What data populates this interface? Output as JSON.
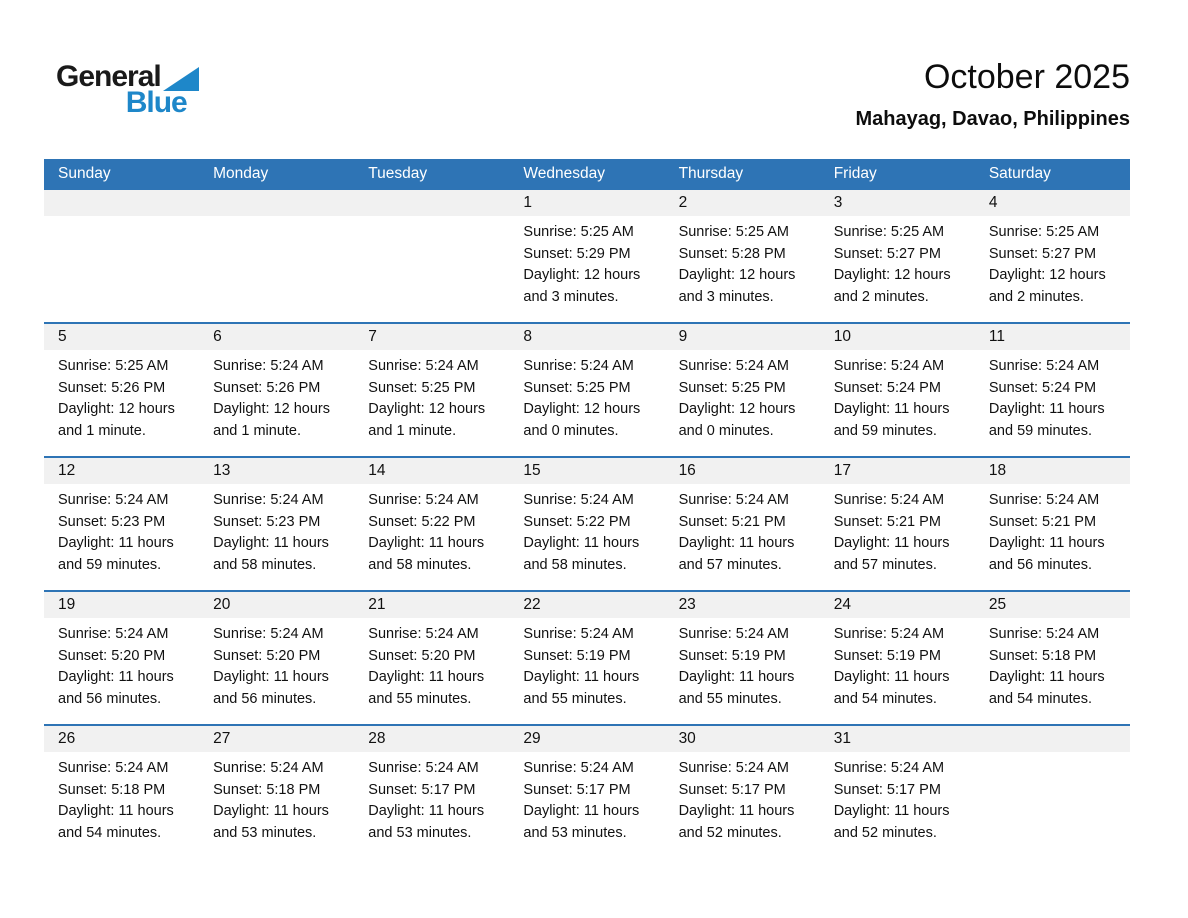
{
  "logo": {
    "part1": "General",
    "part2": "Blue"
  },
  "header": {
    "title": "October 2025",
    "subtitle": "Mahayag, Davao, Philippines"
  },
  "colors": {
    "header_blue": "#2E74B5",
    "day_strip_gray": "#F1F1F1",
    "logo_blue": "#1E87C9"
  },
  "calendar": {
    "weekday_headers": [
      "Sunday",
      "Monday",
      "Tuesday",
      "Wednesday",
      "Thursday",
      "Friday",
      "Saturday"
    ],
    "weeks": [
      [
        {
          "day": ""
        },
        {
          "day": ""
        },
        {
          "day": ""
        },
        {
          "day": "1",
          "sunrise": "Sunrise: 5:25 AM",
          "sunset": "Sunset: 5:29 PM",
          "daylight": [
            "Daylight: 12 hours",
            "and 3 minutes."
          ]
        },
        {
          "day": "2",
          "sunrise": "Sunrise: 5:25 AM",
          "sunset": "Sunset: 5:28 PM",
          "daylight": [
            "Daylight: 12 hours",
            "and 3 minutes."
          ]
        },
        {
          "day": "3",
          "sunrise": "Sunrise: 5:25 AM",
          "sunset": "Sunset: 5:27 PM",
          "daylight": [
            "Daylight: 12 hours",
            "and 2 minutes."
          ]
        },
        {
          "day": "4",
          "sunrise": "Sunrise: 5:25 AM",
          "sunset": "Sunset: 5:27 PM",
          "daylight": [
            "Daylight: 12 hours",
            "and 2 minutes."
          ]
        }
      ],
      [
        {
          "day": "5",
          "sunrise": "Sunrise: 5:25 AM",
          "sunset": "Sunset: 5:26 PM",
          "daylight": [
            "Daylight: 12 hours",
            "and 1 minute."
          ]
        },
        {
          "day": "6",
          "sunrise": "Sunrise: 5:24 AM",
          "sunset": "Sunset: 5:26 PM",
          "daylight": [
            "Daylight: 12 hours",
            "and 1 minute."
          ]
        },
        {
          "day": "7",
          "sunrise": "Sunrise: 5:24 AM",
          "sunset": "Sunset: 5:25 PM",
          "daylight": [
            "Daylight: 12 hours",
            "and 1 minute."
          ]
        },
        {
          "day": "8",
          "sunrise": "Sunrise: 5:24 AM",
          "sunset": "Sunset: 5:25 PM",
          "daylight": [
            "Daylight: 12 hours",
            "and 0 minutes."
          ]
        },
        {
          "day": "9",
          "sunrise": "Sunrise: 5:24 AM",
          "sunset": "Sunset: 5:25 PM",
          "daylight": [
            "Daylight: 12 hours",
            "and 0 minutes."
          ]
        },
        {
          "day": "10",
          "sunrise": "Sunrise: 5:24 AM",
          "sunset": "Sunset: 5:24 PM",
          "daylight": [
            "Daylight: 11 hours",
            "and 59 minutes."
          ]
        },
        {
          "day": "11",
          "sunrise": "Sunrise: 5:24 AM",
          "sunset": "Sunset: 5:24 PM",
          "daylight": [
            "Daylight: 11 hours",
            "and 59 minutes."
          ]
        }
      ],
      [
        {
          "day": "12",
          "sunrise": "Sunrise: 5:24 AM",
          "sunset": "Sunset: 5:23 PM",
          "daylight": [
            "Daylight: 11 hours",
            "and 59 minutes."
          ]
        },
        {
          "day": "13",
          "sunrise": "Sunrise: 5:24 AM",
          "sunset": "Sunset: 5:23 PM",
          "daylight": [
            "Daylight: 11 hours",
            "and 58 minutes."
          ]
        },
        {
          "day": "14",
          "sunrise": "Sunrise: 5:24 AM",
          "sunset": "Sunset: 5:22 PM",
          "daylight": [
            "Daylight: 11 hours",
            "and 58 minutes."
          ]
        },
        {
          "day": "15",
          "sunrise": "Sunrise: 5:24 AM",
          "sunset": "Sunset: 5:22 PM",
          "daylight": [
            "Daylight: 11 hours",
            "and 58 minutes."
          ]
        },
        {
          "day": "16",
          "sunrise": "Sunrise: 5:24 AM",
          "sunset": "Sunset: 5:21 PM",
          "daylight": [
            "Daylight: 11 hours",
            "and 57 minutes."
          ]
        },
        {
          "day": "17",
          "sunrise": "Sunrise: 5:24 AM",
          "sunset": "Sunset: 5:21 PM",
          "daylight": [
            "Daylight: 11 hours",
            "and 57 minutes."
          ]
        },
        {
          "day": "18",
          "sunrise": "Sunrise: 5:24 AM",
          "sunset": "Sunset: 5:21 PM",
          "daylight": [
            "Daylight: 11 hours",
            "and 56 minutes."
          ]
        }
      ],
      [
        {
          "day": "19",
          "sunrise": "Sunrise: 5:24 AM",
          "sunset": "Sunset: 5:20 PM",
          "daylight": [
            "Daylight: 11 hours",
            "and 56 minutes."
          ]
        },
        {
          "day": "20",
          "sunrise": "Sunrise: 5:24 AM",
          "sunset": "Sunset: 5:20 PM",
          "daylight": [
            "Daylight: 11 hours",
            "and 56 minutes."
          ]
        },
        {
          "day": "21",
          "sunrise": "Sunrise: 5:24 AM",
          "sunset": "Sunset: 5:20 PM",
          "daylight": [
            "Daylight: 11 hours",
            "and 55 minutes."
          ]
        },
        {
          "day": "22",
          "sunrise": "Sunrise: 5:24 AM",
          "sunset": "Sunset: 5:19 PM",
          "daylight": [
            "Daylight: 11 hours",
            "and 55 minutes."
          ]
        },
        {
          "day": "23",
          "sunrise": "Sunrise: 5:24 AM",
          "sunset": "Sunset: 5:19 PM",
          "daylight": [
            "Daylight: 11 hours",
            "and 55 minutes."
          ]
        },
        {
          "day": "24",
          "sunrise": "Sunrise: 5:24 AM",
          "sunset": "Sunset: 5:19 PM",
          "daylight": [
            "Daylight: 11 hours",
            "and 54 minutes."
          ]
        },
        {
          "day": "25",
          "sunrise": "Sunrise: 5:24 AM",
          "sunset": "Sunset: 5:18 PM",
          "daylight": [
            "Daylight: 11 hours",
            "and 54 minutes."
          ]
        }
      ],
      [
        {
          "day": "26",
          "sunrise": "Sunrise: 5:24 AM",
          "sunset": "Sunset: 5:18 PM",
          "daylight": [
            "Daylight: 11 hours",
            "and 54 minutes."
          ]
        },
        {
          "day": "27",
          "sunrise": "Sunrise: 5:24 AM",
          "sunset": "Sunset: 5:18 PM",
          "daylight": [
            "Daylight: 11 hours",
            "and 53 minutes."
          ]
        },
        {
          "day": "28",
          "sunrise": "Sunrise: 5:24 AM",
          "sunset": "Sunset: 5:17 PM",
          "daylight": [
            "Daylight: 11 hours",
            "and 53 minutes."
          ]
        },
        {
          "day": "29",
          "sunrise": "Sunrise: 5:24 AM",
          "sunset": "Sunset: 5:17 PM",
          "daylight": [
            "Daylight: 11 hours",
            "and 53 minutes."
          ]
        },
        {
          "day": "30",
          "sunrise": "Sunrise: 5:24 AM",
          "sunset": "Sunset: 5:17 PM",
          "daylight": [
            "Daylight: 11 hours",
            "and 52 minutes."
          ]
        },
        {
          "day": "31",
          "sunrise": "Sunrise: 5:24 AM",
          "sunset": "Sunset: 5:17 PM",
          "daylight": [
            "Daylight: 11 hours",
            "and 52 minutes."
          ]
        },
        {
          "day": ""
        }
      ]
    ]
  }
}
